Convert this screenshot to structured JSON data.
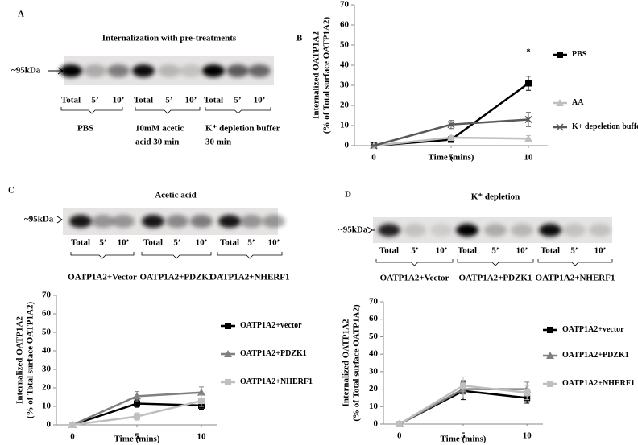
{
  "panel_labels": [
    "A",
    "B",
    "C",
    "D"
  ],
  "blots": [
    {
      "title": "Internalization with pre-treatments",
      "marker": "~95kDa",
      "lanes": [
        "Total",
        "5’",
        "10’",
        "Total",
        "5’",
        "10’",
        "Total",
        "5’",
        "10’"
      ],
      "groups": [
        [
          "PBS"
        ],
        [
          "10mM acetic",
          "acid 30 min"
        ],
        [
          "K⁺ depletion buffer",
          "30 min"
        ]
      ]
    },
    {
      "title": "Acetic acid",
      "marker": "~95kDa",
      "lanes": [
        "Total",
        "5’",
        "10’",
        "Total",
        "5’",
        "10’",
        "Total",
        "5’",
        "10’"
      ],
      "groups": [
        [
          "OATP1A2+Vector"
        ],
        [
          "OATP1A2+PDZK1"
        ],
        [
          "OATP1A2+NHERF1"
        ]
      ]
    },
    {
      "title": "K⁺ depletion",
      "marker": "~95kDa",
      "lanes": [
        "Total",
        "5’",
        "10’",
        "Total",
        "5’",
        "10’",
        "Total",
        "5’",
        "10’"
      ],
      "groups": [
        [
          "OATP1A2+Vector"
        ],
        [
          "OATP1A2+PDZK1"
        ],
        [
          "OATP1A2+NHERF1"
        ]
      ]
    }
  ],
  "chart_data": [
    {
      "type": "line",
      "x": [
        0,
        5,
        10
      ],
      "xlim": [
        -1.25,
        11.25
      ],
      "xticks": [
        0,
        5,
        10
      ],
      "ylim": [
        0,
        70
      ],
      "yticks": [
        0,
        10,
        20,
        30,
        40,
        50,
        60,
        70
      ],
      "xlabel": "Time (mins)",
      "ylabel": [
        "Internalized OATP1A2",
        "(% of Total surface OATP1A2)"
      ],
      "annotation": "*",
      "series": [
        {
          "name": "PBS",
          "color": "#000000",
          "marker": "square",
          "values": [
            0,
            3,
            31
          ],
          "errors": [
            0,
            1,
            3.5
          ]
        },
        {
          "name": "AA",
          "color": "#bfbfbf",
          "marker": "triangle",
          "values": [
            0,
            4,
            3.5
          ],
          "errors": [
            0,
            1,
            1.5
          ]
        },
        {
          "name": "K+ depeletion buffer",
          "color": "#595959",
          "marker": "x",
          "values": [
            0,
            10.5,
            13
          ],
          "errors": [
            0,
            2,
            3.5
          ]
        }
      ]
    },
    {
      "type": "line",
      "x": [
        0,
        5,
        10
      ],
      "xlim": [
        -1.25,
        11.25
      ],
      "xticks": [
        0,
        5,
        10
      ],
      "ylim": [
        0,
        70
      ],
      "yticks": [
        0,
        10,
        20,
        30,
        40,
        50,
        60,
        70
      ],
      "xlabel": "Time (mins)",
      "ylabel": [
        "Internalized OATP1A2",
        "(% of Total surface OATP1A2)"
      ],
      "series": [
        {
          "name": "OATP1A2+vector",
          "color": "#000000",
          "marker": "square",
          "values": [
            0,
            11.5,
            10.5
          ],
          "errors": [
            0,
            2,
            2
          ]
        },
        {
          "name": "OATP1A2+PDZK1",
          "color": "#808080",
          "marker": "triangle",
          "values": [
            0,
            15.5,
            17.5
          ],
          "errors": [
            0,
            2.5,
            3
          ]
        },
        {
          "name": "OATP1A2+NHERF1",
          "color": "#bfbfbf",
          "marker": "square",
          "values": [
            0,
            4.5,
            13
          ],
          "errors": [
            0,
            2,
            3
          ]
        }
      ]
    },
    {
      "type": "line",
      "x": [
        0,
        5,
        10
      ],
      "xlim": [
        -1.25,
        11.25
      ],
      "xticks": [
        0,
        5,
        10
      ],
      "ylim": [
        0,
        70
      ],
      "yticks": [
        0,
        10,
        20,
        30,
        40,
        50,
        60,
        70
      ],
      "xlabel": "Time (mins)",
      "ylabel": [
        "Internalized OATP1A2",
        "(% of Total surface OATP1A2)"
      ],
      "series": [
        {
          "name": "OATP1A2+vector",
          "color": "#000000",
          "marker": "square",
          "values": [
            0,
            19,
            15
          ],
          "errors": [
            0,
            5,
            3
          ]
        },
        {
          "name": "OATP1A2+PDZK1",
          "color": "#808080",
          "marker": "triangle",
          "values": [
            0,
            20,
            20
          ],
          "errors": [
            0,
            5,
            4
          ]
        },
        {
          "name": "OATP1A2+NHERF1",
          "color": "#bfbfbf",
          "marker": "square",
          "values": [
            0,
            22,
            18
          ],
          "errors": [
            0,
            5,
            4
          ]
        }
      ]
    }
  ]
}
